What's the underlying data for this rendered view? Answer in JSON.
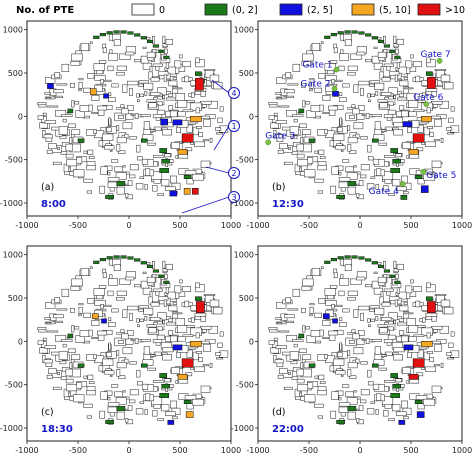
{
  "legend": {
    "title": "No. of PTE",
    "items": [
      {
        "label": "0",
        "color": "#ffffff"
      },
      {
        "label": "(0, 2]",
        "color": "#1a7a1a"
      },
      {
        "label": "(2, 5]",
        "color": "#1010e0"
      },
      {
        "label": "(5, 10]",
        "color": "#f5a623"
      },
      {
        "label": ">10",
        "color": "#e01010"
      }
    ]
  },
  "axis": {
    "x_ticks": [
      "-1000",
      "-500",
      "0",
      "500",
      "1000"
    ],
    "y_ticks": [
      "1000",
      "500",
      "0",
      "-500",
      "-1000"
    ]
  },
  "panels": [
    {
      "letter": "(a)",
      "time": "8:00"
    },
    {
      "letter": "(b)",
      "time": "12:30"
    },
    {
      "letter": "(c)",
      "time": "18:30"
    },
    {
      "letter": "(d)",
      "time": "22:00"
    }
  ],
  "gates": [
    {
      "label": "Gate 1",
      "x": -230,
      "y": 540
    },
    {
      "label": "Gate 2",
      "x": -250,
      "y": 320
    },
    {
      "label": "Gate 3",
      "x": -900,
      "y": -300
    },
    {
      "label": "Gate 4",
      "x": 420,
      "y": -780
    },
    {
      "label": "Gate 5",
      "x": 620,
      "y": -640
    },
    {
      "label": "Gate 6",
      "x": 650,
      "y": 140
    },
    {
      "label": "Gate 7",
      "x": 780,
      "y": 640
    }
  ],
  "callouts": [
    "1",
    "2",
    "3",
    "4"
  ],
  "colors": {
    "green": "#1a7a1a",
    "blue": "#1010e0",
    "orange": "#f5a623",
    "red": "#e01010",
    "gate": "#7ac143",
    "annotation": "#1414c8"
  }
}
